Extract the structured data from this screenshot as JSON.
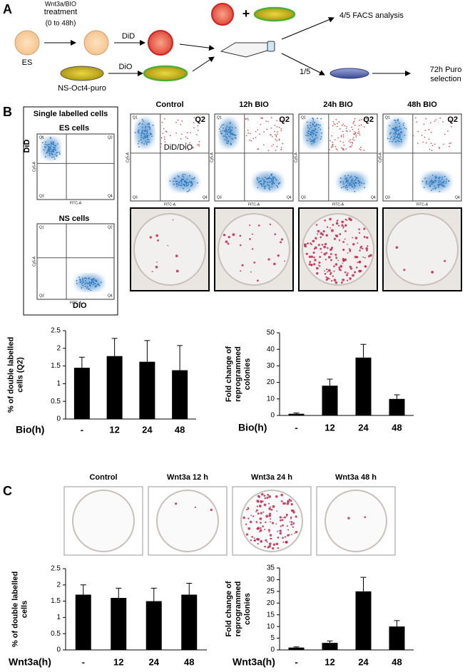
{
  "figure": {
    "panel_a": {
      "letter": "A",
      "treatment": [
        "Wnt3a/BIO",
        "treatment",
        "(0 to 48h)"
      ],
      "es": "ES",
      "did": "DiD",
      "dio": "DiO",
      "ns": "NS-Oct4-puro",
      "plus": "+",
      "facs": "4/5 FACS analysis",
      "fraction": "1/5",
      "selection": [
        "72h Puro",
        "selection"
      ]
    },
    "panel_b": {
      "letter": "B",
      "single_title": "Single labelled cells",
      "es_cells": "ES cells",
      "ns_cells": "NS cells",
      "did": "DiD",
      "dio": "DiO",
      "double": "DiD/DiO",
      "q2": "Q2",
      "quadrants": [
        "Q1",
        "Q2",
        "Q3",
        "Q4"
      ],
      "y_channel": "Cy5-A",
      "x_channel": "FITC-A",
      "plot_titles": [
        "Control",
        "12h BIO",
        "24h BIO",
        "48h BIO"
      ]
    },
    "panel_c": {
      "letter": "C",
      "plate_titles": [
        "Control",
        "Wnt3a 12 h",
        "Wnt3a 24 h",
        "Wnt3a  48 h"
      ]
    }
  },
  "chart_data": [
    {
      "type": "bar",
      "ylabel": [
        "% of double labelled",
        "cells (Q2)"
      ],
      "xlabel": "Bio(h)",
      "categories": [
        "-",
        "12",
        "24",
        "48"
      ],
      "values": [
        1.45,
        1.78,
        1.62,
        1.38
      ],
      "errors": [
        0.3,
        0.5,
        0.6,
        0.7
      ],
      "color": "#000000",
      "ylim": [
        0,
        2.5
      ],
      "yticks": [
        0,
        0.5,
        1,
        1.5,
        2,
        2.5
      ]
    },
    {
      "type": "bar",
      "ylabel": [
        "Fold change of",
        "reprogrammed",
        "colonies"
      ],
      "xlabel": "Bio(h)",
      "categories": [
        "-",
        "12",
        "24",
        "48"
      ],
      "values": [
        1,
        18,
        35,
        10
      ],
      "errors": [
        0.5,
        4,
        8,
        2.5
      ],
      "color": "#000000",
      "ylim": [
        0,
        50
      ],
      "yticks": [
        0,
        10,
        20,
        30,
        40,
        50
      ]
    },
    {
      "type": "bar",
      "ylabel": [
        "% of double labelled",
        "cells"
      ],
      "xlabel": "Wnt3a(h)",
      "categories": [
        "-",
        "12",
        "24",
        "48"
      ],
      "values": [
        1.7,
        1.6,
        1.5,
        1.7
      ],
      "errors": [
        0.3,
        0.3,
        0.4,
        0.35
      ],
      "color": "#000000",
      "ylim": [
        0,
        2.5
      ],
      "yticks": [
        0,
        0.5,
        1,
        1.5,
        2,
        2.5
      ]
    },
    {
      "type": "bar",
      "ylabel": [
        "Fold change of",
        "reprogrammed",
        "colonies"
      ],
      "xlabel": "Wnt3a(h)",
      "categories": [
        "-",
        "12",
        "24",
        "48"
      ],
      "values": [
        1,
        3,
        25,
        10
      ],
      "errors": [
        0.3,
        0.8,
        6,
        2.5
      ],
      "color": "#000000",
      "ylim": [
        0,
        35
      ],
      "yticks": [
        0,
        5,
        10,
        15,
        20,
        25,
        30,
        35
      ]
    }
  ]
}
